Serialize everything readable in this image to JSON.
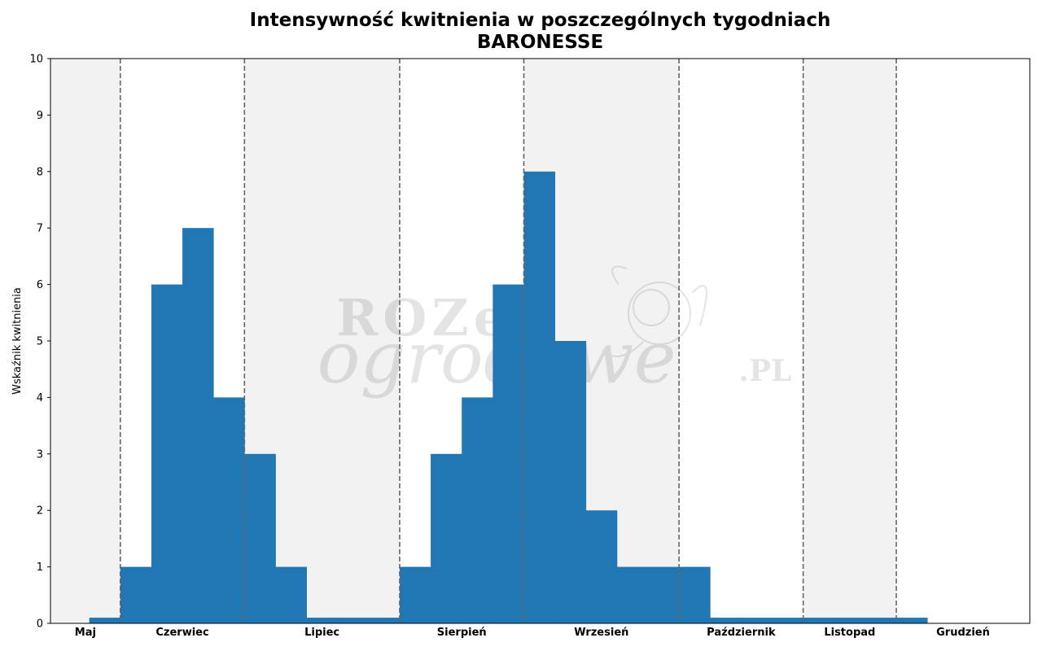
{
  "chart_data": {
    "type": "bar",
    "title_line1": "Intensywność kwitnienia w poszczególnych tygodniach",
    "title_line2": "BARONESSE",
    "xlabel": "",
    "ylabel": "Wskaźnik kwitnienia",
    "ylim": [
      0,
      10
    ],
    "yticks": [
      0,
      1,
      2,
      3,
      4,
      5,
      6,
      7,
      8,
      9,
      10
    ],
    "grid": false,
    "months": [
      {
        "name": "Maj",
        "weeks": 2,
        "shaded": true
      },
      {
        "name": "Czerwiec",
        "weeks": 4,
        "shaded": false
      },
      {
        "name": "Lipiec",
        "weeks": 5,
        "shaded": true
      },
      {
        "name": "Sierpień",
        "weeks": 4,
        "shaded": false
      },
      {
        "name": "Wrzesień",
        "weeks": 5,
        "shaded": true
      },
      {
        "name": "Październik",
        "weeks": 4,
        "shaded": false
      },
      {
        "name": "Listopad",
        "weeks": 3,
        "shaded": true
      },
      {
        "name": "Grudzień",
        "weeks": 2,
        "shaded": false
      }
    ],
    "values": [
      0.1,
      1,
      6,
      7,
      4,
      3,
      1,
      0.1,
      0.1,
      0.1,
      1,
      3,
      4,
      6,
      8,
      5,
      2,
      1,
      1,
      1,
      0.1,
      0.1,
      0.1,
      0.1,
      0.1,
      0.1,
      0.1
    ],
    "first_bar_week": 1,
    "colors": {
      "bar": "#2077b4",
      "shade": "#f2f2f2",
      "divider": "#666666"
    }
  },
  "watermark": {
    "line1": "ROZe",
    "line2": "ogrodowe",
    "suffix": ".PL"
  }
}
